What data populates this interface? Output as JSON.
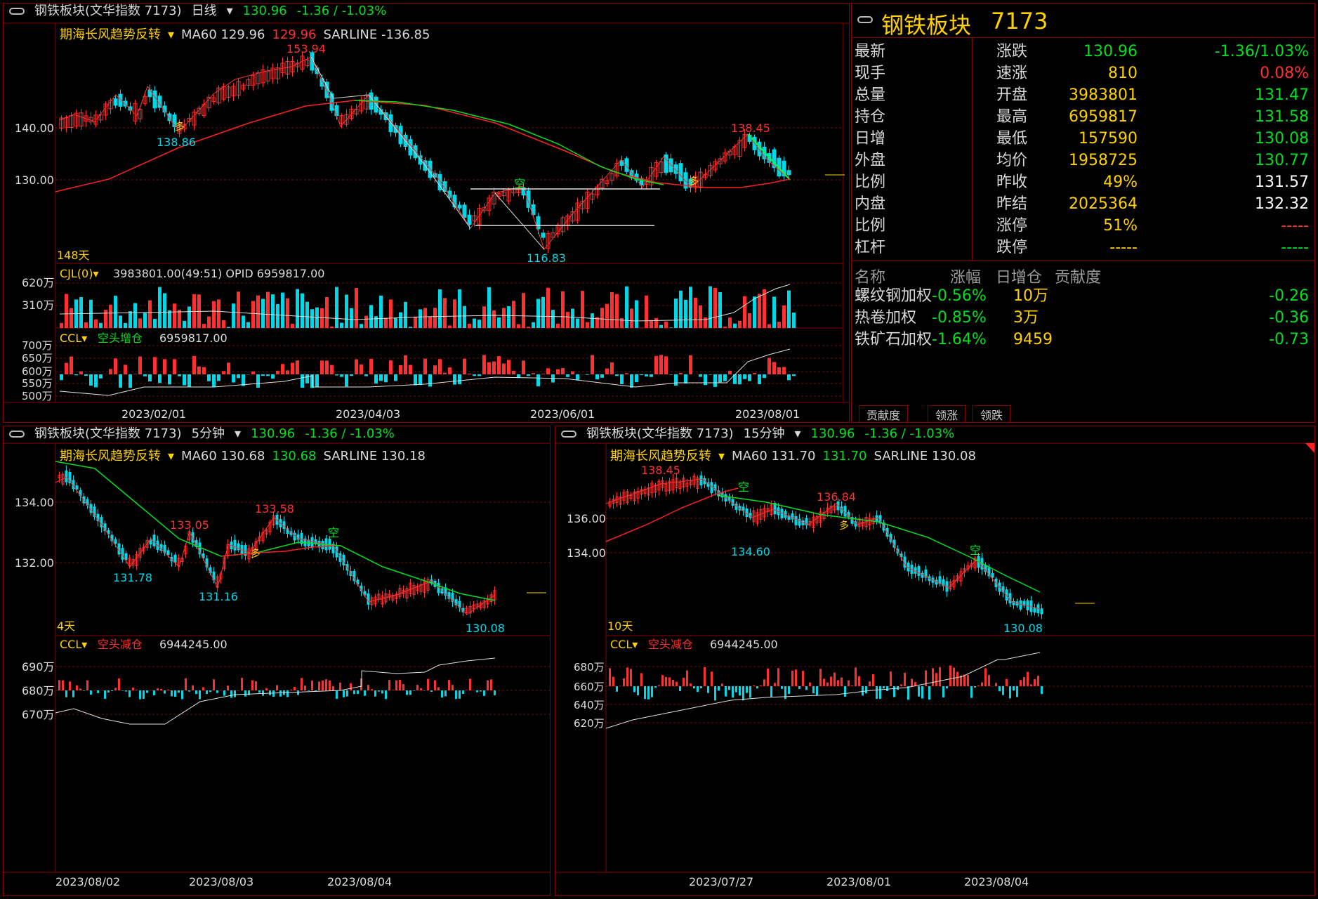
{
  "main": {
    "title": "钢铁板块(文华指数 7173)",
    "period": "日线",
    "price": "130.96",
    "change": "-1.36 / -1.03%",
    "indicator": "期海长风趋势反转",
    "ma60_label": "MA60 129.96",
    "ma60_value": "129.96",
    "sarline": "SARLINE -136.85",
    "days": "148天",
    "yticks": [
      "140.00",
      "130.00"
    ],
    "hi_label": "153.94",
    "lo_label": "116.83",
    "left_lo": "138.86",
    "right_hi": "138.45",
    "kong": "空",
    "duo": "多",
    "vol_title": "CJL(0)",
    "vol_values": "3983801.00(49:51)  OPID 6959817.00",
    "vol_ticks": [
      "620万",
      "310万"
    ],
    "ccl_title": "CCL",
    "ccl_tag": "空头增仓",
    "ccl_value": "6959817.00",
    "ccl_ticks": [
      "700万",
      "650万",
      "600万",
      "550万",
      "500万"
    ],
    "dates": [
      "2023/02/01",
      "2023/04/03",
      "2023/06/01",
      "2023/08/01"
    ]
  },
  "quote": {
    "name": "钢铁板块",
    "code": "7173",
    "rows": [
      {
        "l": "最新",
        "v": "130.96",
        "vc": "#00e020",
        "l2": "涨跌",
        "v2": "-1.36/1.03%",
        "v2c": "#00e020"
      },
      {
        "l": "现手",
        "v": "810",
        "vc": "#ffd000",
        "l2": "速涨",
        "v2": "0.08%",
        "v2c": "#ff3030"
      },
      {
        "l": "总量",
        "v": "3983801",
        "vc": "#ffd000",
        "l2": "开盘",
        "v2": "131.47",
        "v2c": "#00e020"
      },
      {
        "l": "持仓",
        "v": "6959817",
        "vc": "#ffd000",
        "l2": "最高",
        "v2": "131.58",
        "v2c": "#00e020"
      },
      {
        "l": "日增",
        "v": "157590",
        "vc": "#ffd000",
        "l2": "最低",
        "v2": "130.08",
        "v2c": "#00e020"
      },
      {
        "l": "外盘",
        "v": "1958725",
        "vc": "#ffd000",
        "l2": "均价",
        "v2": "130.77",
        "v2c": "#00e020"
      },
      {
        "l": "比例",
        "v": "49%",
        "vc": "#ffd000",
        "l2": "昨收",
        "v2": "131.57",
        "v2c": "#ffffff"
      },
      {
        "l": "内盘",
        "v": "2025364",
        "vc": "#ffd000",
        "l2": "昨结",
        "v2": "132.32",
        "v2c": "#ffffff"
      },
      {
        "l": "比例",
        "v": "51%",
        "vc": "#ffd000",
        "l2": "涨停",
        "v2": "-----",
        "v2c": "#ff3030"
      },
      {
        "l": "杠杆",
        "v": "-----",
        "vc": "#ffd000",
        "l2": "跌停",
        "v2": "-----",
        "v2c": "#00e020"
      }
    ],
    "headers": [
      "名称",
      "涨幅",
      "日增仓",
      "贡献度"
    ],
    "components": [
      {
        "name": "螺纹钢加权",
        "chg": "-0.56%",
        "oi": "10万",
        "contrib": "-0.26"
      },
      {
        "name": "热卷加权",
        "chg": "-0.85%",
        "oi": "3万",
        "contrib": "-0.36"
      },
      {
        "name": "铁矿石加权",
        "chg": "-1.64%",
        "oi": "9459",
        "contrib": "-0.73"
      }
    ],
    "tabs": [
      "贡献度",
      "领涨",
      "领跌"
    ]
  },
  "bl": {
    "title": "钢铁板块(文华指数 7173)",
    "period": "5分钟",
    "price": "130.96",
    "change": "-1.36 / -1.03%",
    "indicator": "期海长风趋势反转",
    "ma60_label": "MA60 130.68",
    "ma60_value": "130.68",
    "sarline": "SARLINE 130.18",
    "days": "4天",
    "yticks": [
      "134.00",
      "132.00"
    ],
    "labels": [
      "133.05",
      "133.58",
      "131.78",
      "131.16",
      "130.08"
    ],
    "kong": "空",
    "duo": "多",
    "ccl_title": "CCL",
    "ccl_tag": "空头减仓",
    "ccl_value": "6944245.00",
    "ccl_ticks": [
      "690万",
      "680万",
      "670万"
    ],
    "dates": [
      "2023/08/02",
      "2023/08/03",
      "2023/08/04"
    ]
  },
  "br": {
    "title": "钢铁板块(文华指数 7173)",
    "period": "15分钟",
    "price": "130.96",
    "change": "-1.36 / -1.03%",
    "indicator": "期海长风趋势反转",
    "ma60_label": "MA60 131.70",
    "ma60_value": "131.70",
    "sarline": "SARLINE 130.08",
    "days": "10天",
    "yticks": [
      "136.00",
      "134.00"
    ],
    "labels": [
      "138.45",
      "136.84",
      "134.60",
      "130.08"
    ],
    "kong": "空",
    "duo": "多",
    "ccl_title": "CCL",
    "ccl_tag": "空头减仓",
    "ccl_value": "6944245.00",
    "ccl_ticks": [
      "680万",
      "660万",
      "640万",
      "620万"
    ],
    "dates": [
      "2023/07/27",
      "2023/08/01",
      "2023/08/04"
    ]
  },
  "colors": {
    "up": "#ff3030",
    "down": "#00d8e8",
    "ma": "#00e020",
    "sar": "#ff2020",
    "grid": "#8a0000"
  }
}
